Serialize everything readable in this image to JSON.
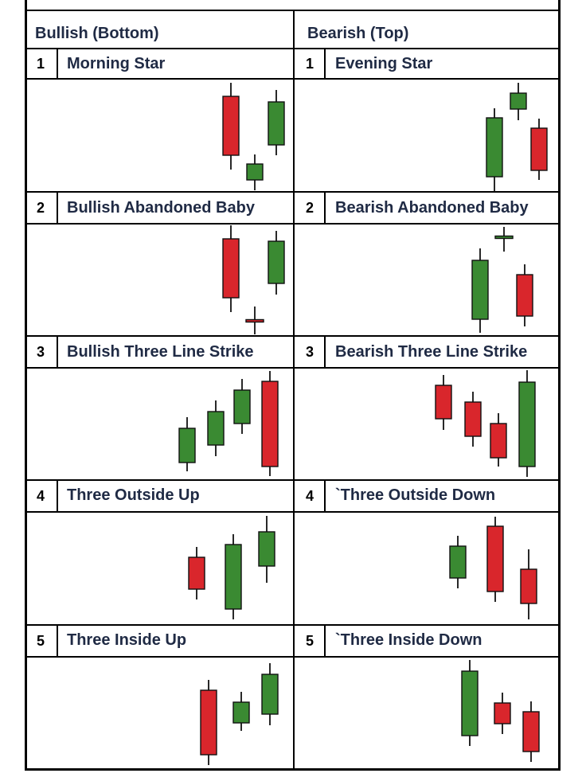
{
  "columns": {
    "bullish": {
      "header": "Bullish (Bottom)"
    },
    "bearish": {
      "header": "Bearish (Top)"
    }
  },
  "colors": {
    "bull": "#3a8a32",
    "bear": "#d9262c",
    "wick": "#111111",
    "line": "#000000"
  },
  "rows": [
    {
      "num": "1",
      "bullish": {
        "name": "Morning Star"
      },
      "bearish": {
        "name": "Evening Star"
      }
    },
    {
      "num": "2",
      "bullish": {
        "name": "Bullish Abandoned Baby"
      },
      "bearish": {
        "name": "Bearish Abandoned Baby"
      }
    },
    {
      "num": "3",
      "bullish": {
        "name": "Bullish Three Line Strike"
      },
      "bearish": {
        "name": "Bearish Three Line Strike"
      }
    },
    {
      "num": "4",
      "bullish": {
        "name": "Three Outside Up"
      },
      "bearish": {
        "name": "`Three Outside Down"
      }
    },
    {
      "num": "5",
      "bullish": {
        "name": "Three Inside Up"
      },
      "bearish": {
        "name": "`Three Inside Down"
      }
    }
  ]
}
